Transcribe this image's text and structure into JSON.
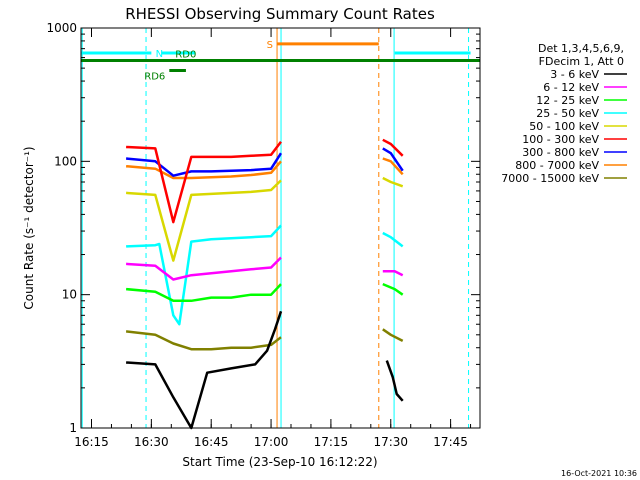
{
  "chart_data": {
    "type": "line",
    "title": "RHESSI Observing Summary Count Rates",
    "xlabel": "Start Time (23-Sep-10 16:12:22)",
    "ylabel": "Count Rate (s⁻¹ detector⁻¹)",
    "y_scale": "log",
    "ylim": [
      1,
      1000
    ],
    "xlim": [
      "16:12:22",
      "17:52:22"
    ],
    "x_ticks": [
      "16:15",
      "16:30",
      "16:45",
      "17:00",
      "17:15",
      "17:30",
      "17:45"
    ],
    "y_ticks": [
      "1",
      "10",
      "100",
      "1000"
    ],
    "grid": false,
    "legend": {
      "header": [
        "Det 1,3,4,5,6,9,",
        "FDecim 1, Att 0"
      ],
      "placement": "right"
    },
    "series": [
      {
        "name": "3 - 6 keV",
        "color": "#000000",
        "segments": [
          {
            "x": [
              "16:23:40",
              "16:31:00",
              "16:35:30",
              "16:40:00",
              "16:44:00",
              "16:50:00",
              "16:56:00",
              "16:59:00",
              "17:01:00",
              "17:02:30"
            ],
            "y": [
              3.1,
              3.0,
              1.7,
              1.0,
              2.6,
              2.8,
              3.0,
              3.8,
              5.5,
              7.5
            ]
          },
          {
            "x": [
              "17:29:00",
              "17:30:30",
              "17:31:30",
              "17:33:00"
            ],
            "y": [
              3.2,
              2.4,
              1.8,
              1.6
            ]
          }
        ]
      },
      {
        "name": "6 - 12 keV",
        "color": "#ff00ff",
        "segments": [
          {
            "x": [
              "16:23:40",
              "16:31:00",
              "16:35:30",
              "16:40:00",
              "16:45:00",
              "16:50:00",
              "16:55:00",
              "17:00:00",
              "17:02:30"
            ],
            "y": [
              17,
              16.5,
              13,
              14,
              14.5,
              15,
              15.5,
              16,
              19
            ]
          },
          {
            "x": [
              "17:28:00",
              "17:31:00",
              "17:33:00"
            ],
            "y": [
              15,
              15,
              14
            ]
          }
        ]
      },
      {
        "name": "12 - 25 keV",
        "color": "#00ff00",
        "segments": [
          {
            "x": [
              "16:23:40",
              "16:31:00",
              "16:35:30",
              "16:40:00",
              "16:45:00",
              "16:50:00",
              "16:55:00",
              "17:00:00",
              "17:02:30"
            ],
            "y": [
              11,
              10.5,
              9,
              9,
              9.5,
              9.5,
              10,
              10,
              12
            ]
          },
          {
            "x": [
              "17:28:00",
              "17:31:00",
              "17:33:00"
            ],
            "y": [
              12,
              11,
              10
            ]
          }
        ]
      },
      {
        "name": "25 - 50 keV",
        "color": "#00ffff",
        "segments": [
          {
            "x": [
              "16:23:40",
              "16:31:00",
              "16:32:00",
              "16:35:30",
              "16:37:00",
              "16:40:00",
              "16:45:00",
              "16:50:00",
              "16:55:00",
              "17:00:00",
              "17:02:30"
            ],
            "y": [
              23,
              23.5,
              24,
              7,
              6,
              25,
              26,
              26.5,
              27,
              27.5,
              33
            ]
          },
          {
            "x": [
              "17:28:00",
              "17:30:00",
              "17:33:00"
            ],
            "y": [
              29,
              27,
              23
            ]
          }
        ]
      },
      {
        "name": "50 - 100 keV",
        "color": "#d8d800",
        "segments": [
          {
            "x": [
              "16:23:40",
              "16:31:00",
              "16:35:30",
              "16:40:00",
              "16:45:00",
              "16:50:00",
              "16:55:00",
              "17:00:00",
              "17:02:30"
            ],
            "y": [
              58,
              56,
              18,
              56,
              57,
              58,
              59,
              61,
              72
            ]
          },
          {
            "x": [
              "17:28:00",
              "17:30:00",
              "17:33:00"
            ],
            "y": [
              75,
              70,
              65
            ]
          }
        ]
      },
      {
        "name": "100 - 300 keV",
        "color": "#ff0000",
        "segments": [
          {
            "x": [
              "16:23:40",
              "16:31:00",
              "16:35:30",
              "16:40:00",
              "16:45:00",
              "16:50:00",
              "16:55:00",
              "17:00:00",
              "17:02:30"
            ],
            "y": [
              128,
              125,
              35,
              108,
              108,
              108,
              110,
              112,
              140
            ]
          },
          {
            "x": [
              "17:28:00",
              "17:30:00",
              "17:33:00"
            ],
            "y": [
              145,
              135,
              110
            ]
          }
        ]
      },
      {
        "name": "300 - 800 keV",
        "color": "#0000ff",
        "segments": [
          {
            "x": [
              "16:23:40",
              "16:31:00",
              "16:35:30",
              "16:40:00",
              "16:45:00",
              "16:50:00",
              "16:55:00",
              "17:00:00",
              "17:02:30"
            ],
            "y": [
              105,
              100,
              78,
              84,
              84,
              85,
              86,
              88,
              115
            ]
          },
          {
            "x": [
              "17:28:00",
              "17:30:00",
              "17:33:00"
            ],
            "y": [
              125,
              115,
              85
            ]
          }
        ]
      },
      {
        "name": "800 - 7000 keV",
        "color": "#ff8000",
        "segments": [
          {
            "x": [
              "16:23:40",
              "16:31:00",
              "16:35:30",
              "16:40:00",
              "16:45:00",
              "16:50:00",
              "16:55:00",
              "17:00:00",
              "17:02:30"
            ],
            "y": [
              92,
              88,
              75,
              75,
              76,
              77,
              79,
              82,
              100
            ]
          },
          {
            "x": [
              "17:28:00",
              "17:30:00",
              "17:33:00"
            ],
            "y": [
              105,
              100,
              80
            ]
          }
        ]
      },
      {
        "name": "7000 - 15000 keV",
        "color": "#808000",
        "segments": [
          {
            "x": [
              "16:23:40",
              "16:31:00",
              "16:35:30",
              "16:40:00",
              "16:45:00",
              "16:50:00",
              "16:55:00",
              "17:00:00",
              "17:02:30"
            ],
            "y": [
              5.3,
              5.0,
              4.3,
              3.9,
              3.9,
              4.0,
              4.0,
              4.2,
              4.8
            ]
          },
          {
            "x": [
              "17:28:00",
              "17:30:00",
              "17:33:00"
            ],
            "y": [
              5.5,
              5.0,
              4.5
            ]
          }
        ]
      }
    ],
    "flags": [
      {
        "label": "N",
        "color": "#00ffff",
        "value": 650,
        "segments": [
          [
            "16:12:22",
            "16:30:00"
          ],
          [
            "16:32:30",
            "16:41:00"
          ],
          [
            "17:31:00",
            "17:50:00"
          ]
        ]
      },
      {
        "label": "RD6",
        "color": "#008000",
        "value": 480,
        "segments": [
          [
            "16:34:30",
            "16:38:40"
          ]
        ]
      },
      {
        "label": "RD0",
        "color": "#008000",
        "value": 570,
        "segments": [
          [
            "16:12:22",
            "17:52:22"
          ]
        ]
      },
      {
        "label": "S",
        "color": "#ff8000",
        "value": 760,
        "segments": [
          [
            "17:01:30",
            "17:27:00"
          ]
        ]
      }
    ],
    "vlines": [
      {
        "t": "16:12:40",
        "color": "#00ffff",
        "dashed": false
      },
      {
        "t": "16:28:40",
        "color": "#00ffff",
        "dashed": true
      },
      {
        "t": "17:01:30",
        "color": "#ff8000",
        "dashed": false
      },
      {
        "t": "17:02:30",
        "color": "#00ffff",
        "dashed": false
      },
      {
        "t": "17:27:00",
        "color": "#ff8000",
        "dashed": true
      },
      {
        "t": "17:30:50",
        "color": "#00ffff",
        "dashed": false
      },
      {
        "t": "17:49:30",
        "color": "#00ffff",
        "dashed": true
      }
    ]
  },
  "timestamp": "16-Oct-2021 10:36"
}
